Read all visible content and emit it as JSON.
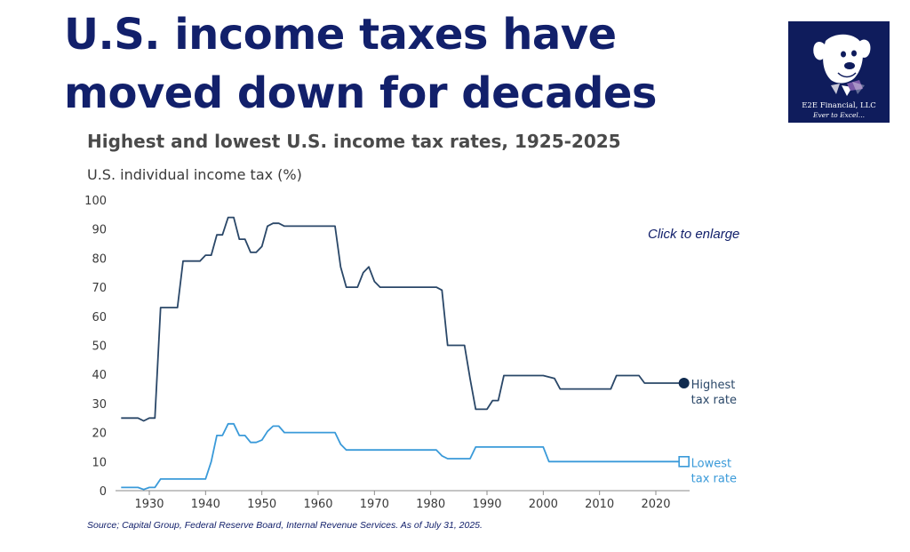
{
  "header": {
    "headline": "U.S. income taxes have moved down for decades"
  },
  "logo": {
    "name": "E2E Financial, LLC",
    "tagline": "Ever to Excel..."
  },
  "link": {
    "enlarge": "Click to enlarge"
  },
  "footer": {
    "source": "Source; Capital Group, Federal Reserve Board, Internal Revenue Services. As of July 31, 2025."
  },
  "chart_data": {
    "type": "line",
    "title": "Highest and lowest U.S. income tax rates, 1925-2025",
    "ylabel": "U.S. individual income tax (%)",
    "xlim": [
      1924,
      2026
    ],
    "ylim": [
      0,
      100
    ],
    "xticks": [
      1930,
      1940,
      1950,
      1960,
      1970,
      1980,
      1990,
      2000,
      2010,
      2020
    ],
    "yticks": [
      0,
      10,
      20,
      30,
      40,
      50,
      60,
      70,
      80,
      90,
      100
    ],
    "grid": false,
    "colors": {
      "highest": "#2a4768",
      "lowest": "#3a9ad9",
      "text": "#12206b"
    },
    "series": [
      {
        "name": "Highest tax rate",
        "label_lines": [
          "Highest",
          "tax rate"
        ],
        "end_marker": "filled-circle",
        "color": "#2a4768",
        "points": [
          [
            1925,
            25
          ],
          [
            1928,
            25
          ],
          [
            1929,
            24
          ],
          [
            1930,
            25
          ],
          [
            1931,
            25
          ],
          [
            1932,
            63
          ],
          [
            1935,
            63
          ],
          [
            1936,
            79
          ],
          [
            1939,
            79
          ],
          [
            1940,
            81
          ],
          [
            1941,
            81
          ],
          [
            1942,
            88
          ],
          [
            1943,
            88
          ],
          [
            1944,
            94
          ],
          [
            1945,
            94
          ],
          [
            1946,
            86.5
          ],
          [
            1947,
            86.5
          ],
          [
            1948,
            82
          ],
          [
            1949,
            82
          ],
          [
            1950,
            84
          ],
          [
            1951,
            91
          ],
          [
            1952,
            92
          ],
          [
            1953,
            92
          ],
          [
            1954,
            91
          ],
          [
            1963,
            91
          ],
          [
            1964,
            77
          ],
          [
            1965,
            70
          ],
          [
            1967,
            70
          ],
          [
            1968,
            75
          ],
          [
            1969,
            77
          ],
          [
            1970,
            72
          ],
          [
            1971,
            70
          ],
          [
            1981,
            70
          ],
          [
            1982,
            69
          ],
          [
            1983,
            50
          ],
          [
            1986,
            50
          ],
          [
            1987,
            38.5
          ],
          [
            1988,
            28
          ],
          [
            1990,
            28
          ],
          [
            1991,
            31
          ],
          [
            1992,
            31
          ],
          [
            1993,
            39.6
          ],
          [
            2000,
            39.6
          ],
          [
            2001,
            39.1
          ],
          [
            2002,
            38.6
          ],
          [
            2003,
            35
          ],
          [
            2012,
            35
          ],
          [
            2013,
            39.6
          ],
          [
            2017,
            39.6
          ],
          [
            2018,
            37
          ],
          [
            2025,
            37
          ]
        ]
      },
      {
        "name": "Lowest tax rate",
        "label_lines": [
          "Lowest",
          "tax rate"
        ],
        "end_marker": "open-square",
        "color": "#3a9ad9",
        "points": [
          [
            1925,
            1.1
          ],
          [
            1928,
            1.1
          ],
          [
            1929,
            0.4
          ],
          [
            1930,
            1.1
          ],
          [
            1931,
            1.1
          ],
          [
            1932,
            4
          ],
          [
            1940,
            4
          ],
          [
            1941,
            10
          ],
          [
            1942,
            19
          ],
          [
            1943,
            19
          ],
          [
            1944,
            23
          ],
          [
            1945,
            23
          ],
          [
            1946,
            19
          ],
          [
            1947,
            19
          ],
          [
            1948,
            16.6
          ],
          [
            1949,
            16.6
          ],
          [
            1950,
            17.4
          ],
          [
            1951,
            20.4
          ],
          [
            1952,
            22.2
          ],
          [
            1953,
            22.2
          ],
          [
            1954,
            20
          ],
          [
            1963,
            20
          ],
          [
            1964,
            16
          ],
          [
            1965,
            14
          ],
          [
            1981,
            14
          ],
          [
            1982,
            12
          ],
          [
            1983,
            11
          ],
          [
            1986,
            11
          ],
          [
            1987,
            11
          ],
          [
            1988,
            15
          ],
          [
            2000,
            15
          ],
          [
            2001,
            10
          ],
          [
            2025,
            10
          ]
        ]
      }
    ]
  }
}
